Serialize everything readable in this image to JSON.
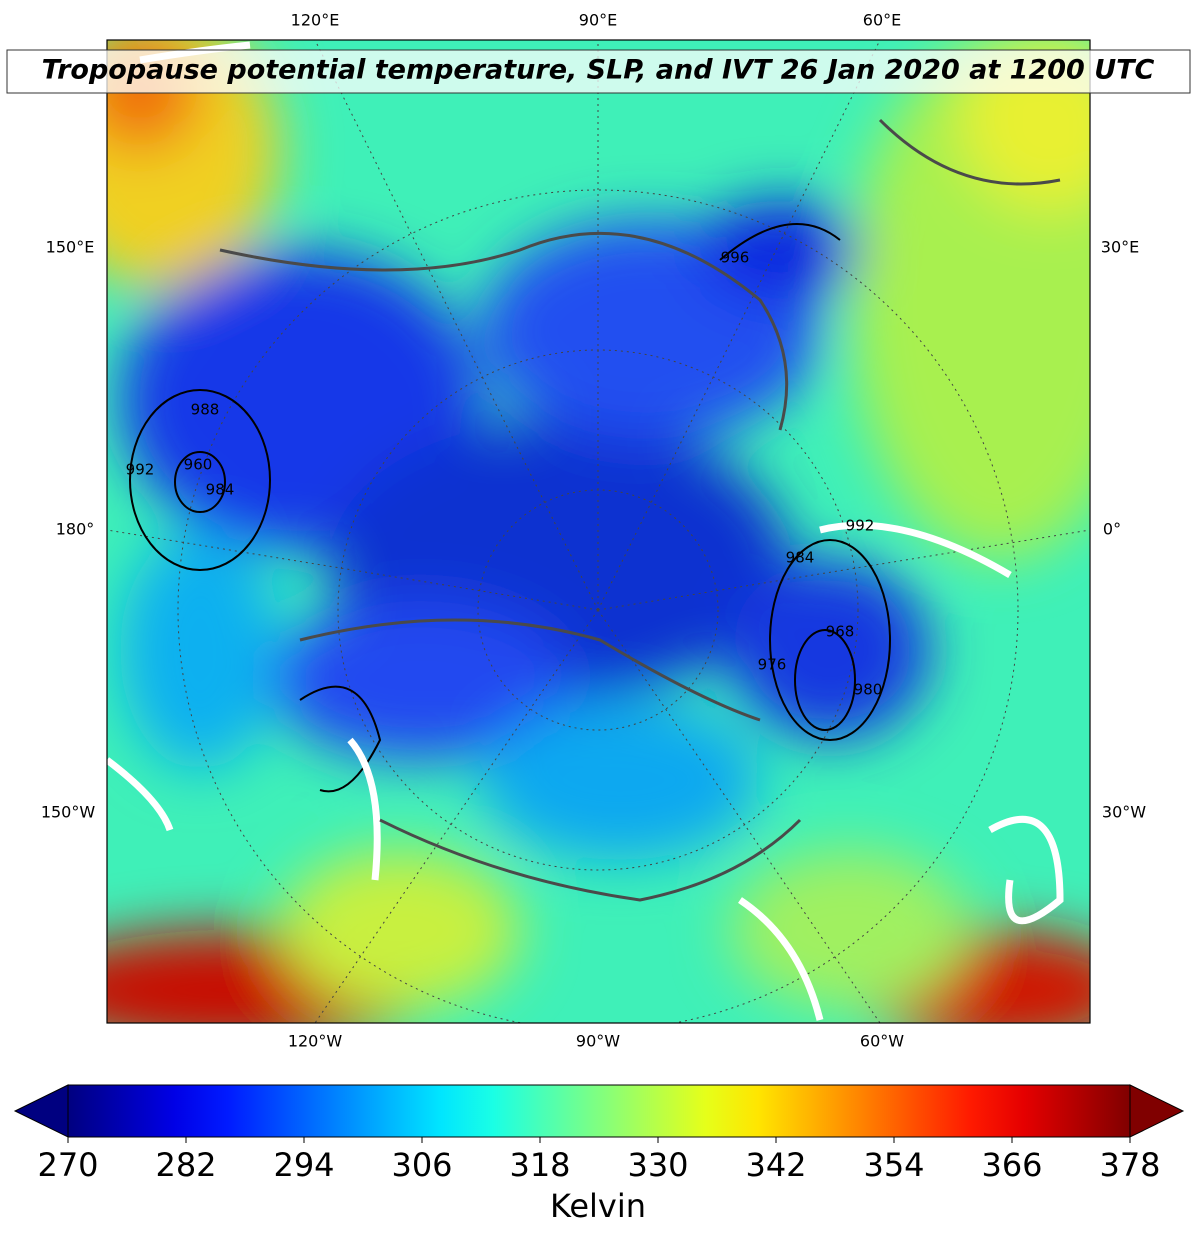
{
  "title": "Tropopause potential temperature, SLP, and IVT 26 Jan 2020 at 1200 UTC",
  "map": {
    "top_labels": [
      "120°E",
      "90°E",
      "60°E"
    ],
    "bottom_labels": [
      "120°W",
      "90°W",
      "60°W"
    ],
    "left_labels": [
      "150°E",
      "180°",
      "150°W"
    ],
    "right_labels": [
      "30°E",
      "0°",
      "30°W"
    ],
    "slp_contour_labels": [
      "992",
      "988",
      "960",
      "984",
      "996",
      "992",
      "984",
      "976",
      "968",
      "980"
    ]
  },
  "colorbar": {
    "label": "Kelvin",
    "colormap": "jet",
    "extend": "both",
    "clim": [
      270,
      378
    ],
    "ticks": [
      270,
      282,
      294,
      306,
      318,
      330,
      342,
      354,
      366,
      378
    ]
  }
}
